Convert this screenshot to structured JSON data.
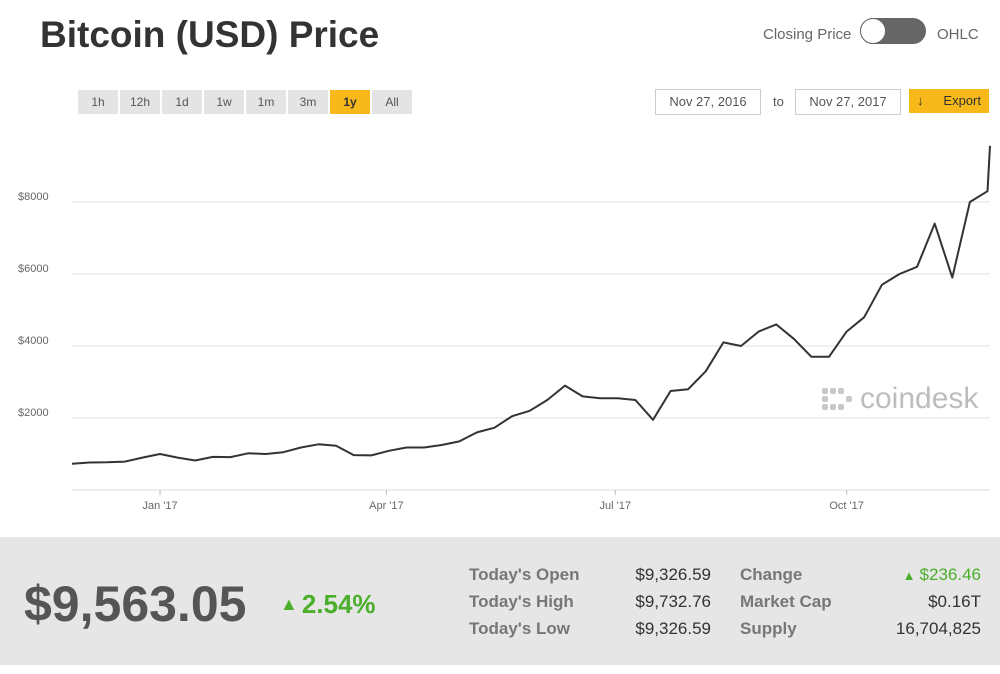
{
  "header": {
    "title": "Bitcoin (USD) Price",
    "toggle_left": "Closing Price",
    "toggle_right": "OHLC"
  },
  "controls": {
    "ranges": [
      "1h",
      "12h",
      "1d",
      "1w",
      "1m",
      "3m",
      "1y",
      "All"
    ],
    "active_range": "1y",
    "date_from": "Nov 27, 2016",
    "date_to_label": "to",
    "date_to": "Nov 27, 2017",
    "export": "Export"
  },
  "chart_data": {
    "type": "line",
    "color": "#333333",
    "grid": true,
    "watermark": "coindesk",
    "x": [
      "2016-11-27",
      "2016-12-04",
      "2016-12-11",
      "2016-12-18",
      "2016-12-25",
      "2017-01-01",
      "2017-01-08",
      "2017-01-15",
      "2017-01-22",
      "2017-01-29",
      "2017-02-05",
      "2017-02-12",
      "2017-02-19",
      "2017-02-26",
      "2017-03-05",
      "2017-03-12",
      "2017-03-19",
      "2017-03-26",
      "2017-04-02",
      "2017-04-09",
      "2017-04-16",
      "2017-04-23",
      "2017-04-30",
      "2017-05-07",
      "2017-05-14",
      "2017-05-21",
      "2017-05-28",
      "2017-06-04",
      "2017-06-11",
      "2017-06-18",
      "2017-06-25",
      "2017-07-02",
      "2017-07-09",
      "2017-07-16",
      "2017-07-23",
      "2017-07-30",
      "2017-08-06",
      "2017-08-13",
      "2017-08-20",
      "2017-08-27",
      "2017-09-03",
      "2017-09-10",
      "2017-09-17",
      "2017-09-24",
      "2017-10-01",
      "2017-10-08",
      "2017-10-15",
      "2017-10-22",
      "2017-10-29",
      "2017-11-05",
      "2017-11-12",
      "2017-11-19",
      "2017-11-26",
      "2017-11-27"
    ],
    "values": [
      730,
      765,
      770,
      790,
      900,
      1000,
      900,
      820,
      920,
      915,
      1020,
      1000,
      1050,
      1180,
      1270,
      1230,
      970,
      960,
      1090,
      1180,
      1180,
      1250,
      1350,
      1600,
      1730,
      2050,
      2200,
      2500,
      2900,
      2600,
      2550,
      2550,
      2500,
      1950,
      2750,
      2800,
      3300,
      4100,
      4000,
      4400,
      4600,
      4200,
      3700,
      3700,
      4400,
      4800,
      5700,
      6000,
      6200,
      7400,
      5900,
      8000,
      8300,
      9560
    ],
    "xlim": [
      "2016-11-27",
      "2017-11-27"
    ],
    "xticks": [
      {
        "value": "2017-01-01",
        "label": "Jan '17"
      },
      {
        "value": "2017-04-01",
        "label": "Apr '17"
      },
      {
        "value": "2017-07-01",
        "label": "Jul '17"
      },
      {
        "value": "2017-10-01",
        "label": "Oct '17"
      }
    ],
    "ylim": [
      0,
      10000
    ],
    "yticks": [
      {
        "value": 2000,
        "label": "$2000"
      },
      {
        "value": 4000,
        "label": "$4000"
      },
      {
        "value": 6000,
        "label": "$6000"
      },
      {
        "value": 8000,
        "label": "$8000"
      }
    ]
  },
  "summary": {
    "price": "$9,563.05",
    "change_pct": "2.54%",
    "stats": [
      [
        "Today's Open",
        "$9,326.59",
        "Change",
        "$236.46"
      ],
      [
        "Today's High",
        "$9,732.76",
        "Market Cap",
        "$0.16T"
      ],
      [
        "Today's Low",
        "$9,326.59",
        "Supply",
        "16,704,825"
      ]
    ]
  }
}
